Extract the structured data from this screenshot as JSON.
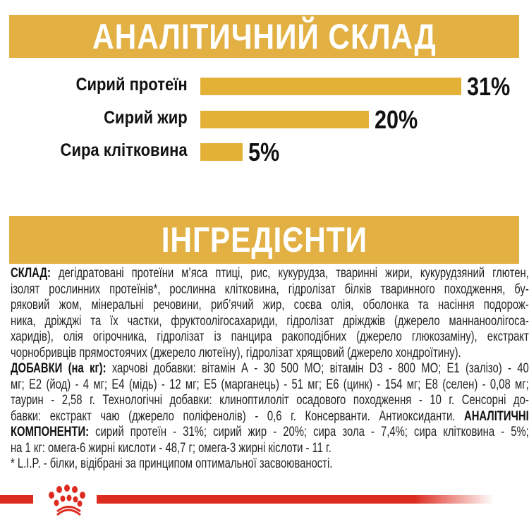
{
  "analysis": {
    "title": "АНАЛІТИЧНИЙ СКЛАД",
    "items": [
      {
        "label": "Сирий протеїн",
        "value": "31%",
        "percent": 31
      },
      {
        "label": "Сирий жир",
        "value": "20%",
        "percent": 20
      },
      {
        "label": "Сира клітковина",
        "value": "5%",
        "percent": 5
      }
    ],
    "bar_color": "#e3b135"
  },
  "ingredients": {
    "title": "ІНГРЕДІЄНТИ",
    "lines": [
      [
        {
          "b": "СКЛАД:",
          "t": " дегідратовані протеїни м’яса птиці, рис, кукурудза, тваринні жири, кукурудзяний глютен,"
        }
      ],
      [
        {
          "b": "",
          "t": "ізолят рослинних протеїнів*, рослинна клітковина, гідролізат білків тваринного походження, бу-"
        }
      ],
      [
        {
          "b": "",
          "t": "ряковий жом, мінеральні речовини, риб’ячий жир, соєва олія, оболонка та насіння подорож-"
        }
      ],
      [
        {
          "b": "",
          "t": "ника, дріжджі та їх частки, фруктоолігосахариди, гідролізат дріжджів (джерело маннаноолігоса-"
        }
      ],
      [
        {
          "b": "",
          "t": "харидів), олія огірочника, гідролізат із панцира ракоподібних (джерело глюкозаміну), екстракт"
        }
      ],
      [
        {
          "b": "",
          "t": "чорнобривців прямостоячих (джерело лютеїну), гідролізат хрящовий (джерело хондроїтину)."
        }
      ],
      [
        {
          "b": "ДОБАВКИ (на кг):",
          "t": " харчові добавки: вітамін А - 30 500 МО; вітамін D3 - 800 МО; E1 (залізо) - 40"
        }
      ],
      [
        {
          "b": "",
          "t": "мг; E2 (йод) - 4 мг; E4 (мідь) - 12 мг; E5 (марганець) - 51 мг; E6 (цинк) - 154 мг; E8 (селен) - 0,08 мг;"
        }
      ],
      [
        {
          "b": "",
          "t": "таурин - 2,58 г. Технологічні добавки: клиноптилоліт осадового походження - 10 г. Сенсорні до-"
        }
      ],
      [
        {
          "b": "",
          "t": "бавки: екстракт чаю (джерело поліфенолів) - 0,6 г. Консерванти. Антиоксиданти. "
        },
        {
          "b": "АНАЛІТИЧНІ",
          "t": ""
        }
      ],
      [
        {
          "b": "КОМПОНЕНТИ:",
          "t": " сирий протеїн - 31%; сирий жир - 20%; сира зола - 7,4%; сира клітковина - 5%;"
        }
      ],
      [
        {
          "b": "",
          "t": "на 1 кг: омега-6 жирні кислоти - 48,7 г; омега-3 жирні кіслоти - 11 г."
        }
      ],
      [
        {
          "b": "",
          "t": "* L.I.P. - білки, відібрані за принципом оптимальної засвоюваності."
        }
      ]
    ]
  },
  "brand": {
    "logo": "royal-canin-crown-logo",
    "color": "#dd2b1f",
    "banner_color": "#e2b043"
  }
}
